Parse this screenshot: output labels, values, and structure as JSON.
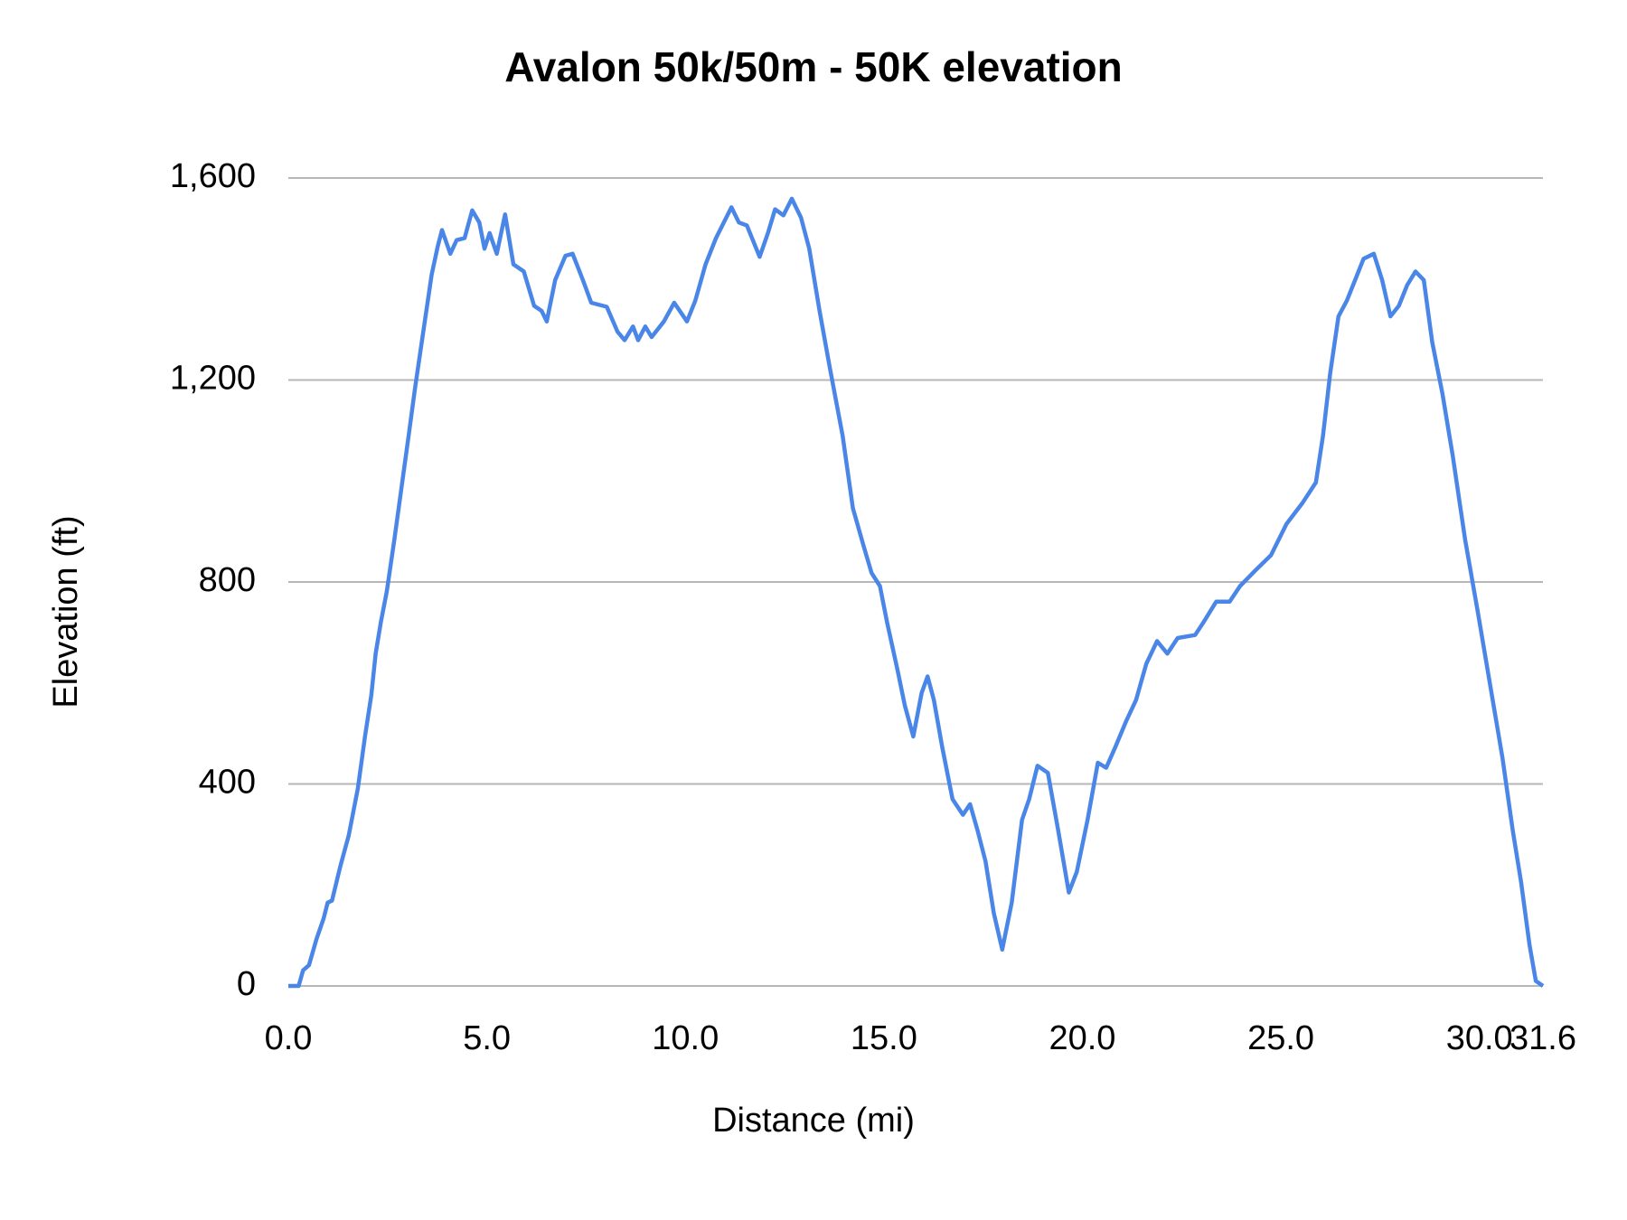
{
  "chart_data": {
    "type": "line",
    "title": "Avalon 50k/50m - 50K elevation",
    "x_label": "Distance (mi)",
    "y_label": "Elevation (ft)",
    "x": [
      0,
      0.26,
      0.37,
      0.52,
      0.71,
      0.89,
      0.99,
      1.1,
      1.31,
      1.52,
      1.75,
      1.93,
      2.09,
      2.2,
      2.33,
      2.48,
      2.67,
      2.85,
      3.03,
      3.19,
      3.4,
      3.61,
      3.76,
      3.87,
      4.08,
      4.24,
      4.44,
      4.63,
      4.81,
      4.94,
      5.07,
      5.25,
      5.46,
      5.67,
      5.93,
      6.19,
      6.38,
      6.51,
      6.72,
      6.98,
      7.16,
      7.42,
      7.63,
      8.02,
      8.29,
      8.47,
      8.68,
      8.81,
      8.99,
      9.15,
      9.46,
      9.72,
      10.04,
      10.25,
      10.51,
      10.77,
      11.16,
      11.35,
      11.55,
      11.87,
      12.08,
      12.26,
      12.47,
      12.68,
      12.91,
      13.12,
      13.38,
      13.64,
      13.96,
      14.22,
      14.48,
      14.69,
      14.9,
      15.08,
      15.34,
      15.53,
      15.74,
      15.95,
      16.1,
      16.26,
      16.47,
      16.73,
      16.99,
      17.17,
      17.36,
      17.56,
      17.77,
      17.98,
      18.22,
      18.48,
      18.66,
      18.87,
      19.13,
      19.39,
      19.66,
      19.86,
      20.13,
      20.39,
      20.6,
      20.83,
      21.1,
      21.35,
      21.61,
      21.88,
      22.14,
      22.4,
      22.84,
      23.05,
      23.37,
      23.71,
      23.97,
      24.36,
      24.75,
      25.14,
      25.54,
      25.88,
      26.06,
      26.24,
      26.45,
      26.66,
      26.87,
      27.08,
      27.34,
      27.55,
      27.76,
      27.97,
      28.18,
      28.39,
      28.6,
      28.81,
      29.07,
      29.33,
      29.64,
      29.96,
      30.27,
      30.58,
      30.84,
      31.05,
      31.26,
      31.42,
      31.6
    ],
    "series": [
      {
        "name": "Elevation",
        "color": "#4a86e8",
        "values": [
          0,
          0,
          31,
          41,
          93,
          134,
          165,
          169,
          237,
          298,
          391,
          494,
          576,
          658,
          720,
          781,
          884,
          987,
          1090,
          1183,
          1296,
          1409,
          1464,
          1497,
          1450,
          1477,
          1481,
          1536,
          1512,
          1460,
          1491,
          1450,
          1528,
          1429,
          1415,
          1347,
          1337,
          1316,
          1398,
          1446,
          1450,
          1398,
          1353,
          1345,
          1296,
          1279,
          1306,
          1279,
          1306,
          1285,
          1316,
          1353,
          1316,
          1357,
          1429,
          1481,
          1542,
          1512,
          1506,
          1444,
          1491,
          1538,
          1526,
          1559,
          1522,
          1460,
          1337,
          1224,
          1090,
          946,
          874,
          818,
          792,
          720,
          627,
          555,
          494,
          580,
          613,
          566,
          473,
          370,
          339,
          360,
          308,
          247,
          144,
          72,
          165,
          329,
          370,
          436,
          422,
          308,
          185,
          226,
          329,
          442,
          432,
          473,
          524,
          566,
          638,
          683,
          658,
          689,
          695,
          720,
          761,
          761,
          792,
          823,
          853,
          915,
          956,
          997,
          1090,
          1213,
          1326,
          1357,
          1398,
          1440,
          1450,
          1398,
          1326,
          1347,
          1388,
          1415,
          1398,
          1275,
          1172,
          1049,
          884,
          740,
          596,
          452,
          308,
          206,
          82,
          10,
          0
        ]
      }
    ],
    "xlim": [
      0,
      31.6
    ],
    "xticks": [
      {
        "value": 0,
        "label": "0.0"
      },
      {
        "value": 5,
        "label": "5.0"
      },
      {
        "value": 10,
        "label": "10.0"
      },
      {
        "value": 15,
        "label": "15.0"
      },
      {
        "value": 20,
        "label": "20.0"
      },
      {
        "value": 25,
        "label": "25.0"
      },
      {
        "value": 30,
        "label": "30.0"
      },
      {
        "value": 31.6,
        "label": "31.6"
      }
    ],
    "ylim": [
      0,
      1600
    ],
    "yticks": [
      0,
      400,
      800,
      {
        "value": 1200,
        "label": "1,200"
      },
      {
        "value": 1600,
        "label": "1,600"
      }
    ],
    "grid": true
  }
}
